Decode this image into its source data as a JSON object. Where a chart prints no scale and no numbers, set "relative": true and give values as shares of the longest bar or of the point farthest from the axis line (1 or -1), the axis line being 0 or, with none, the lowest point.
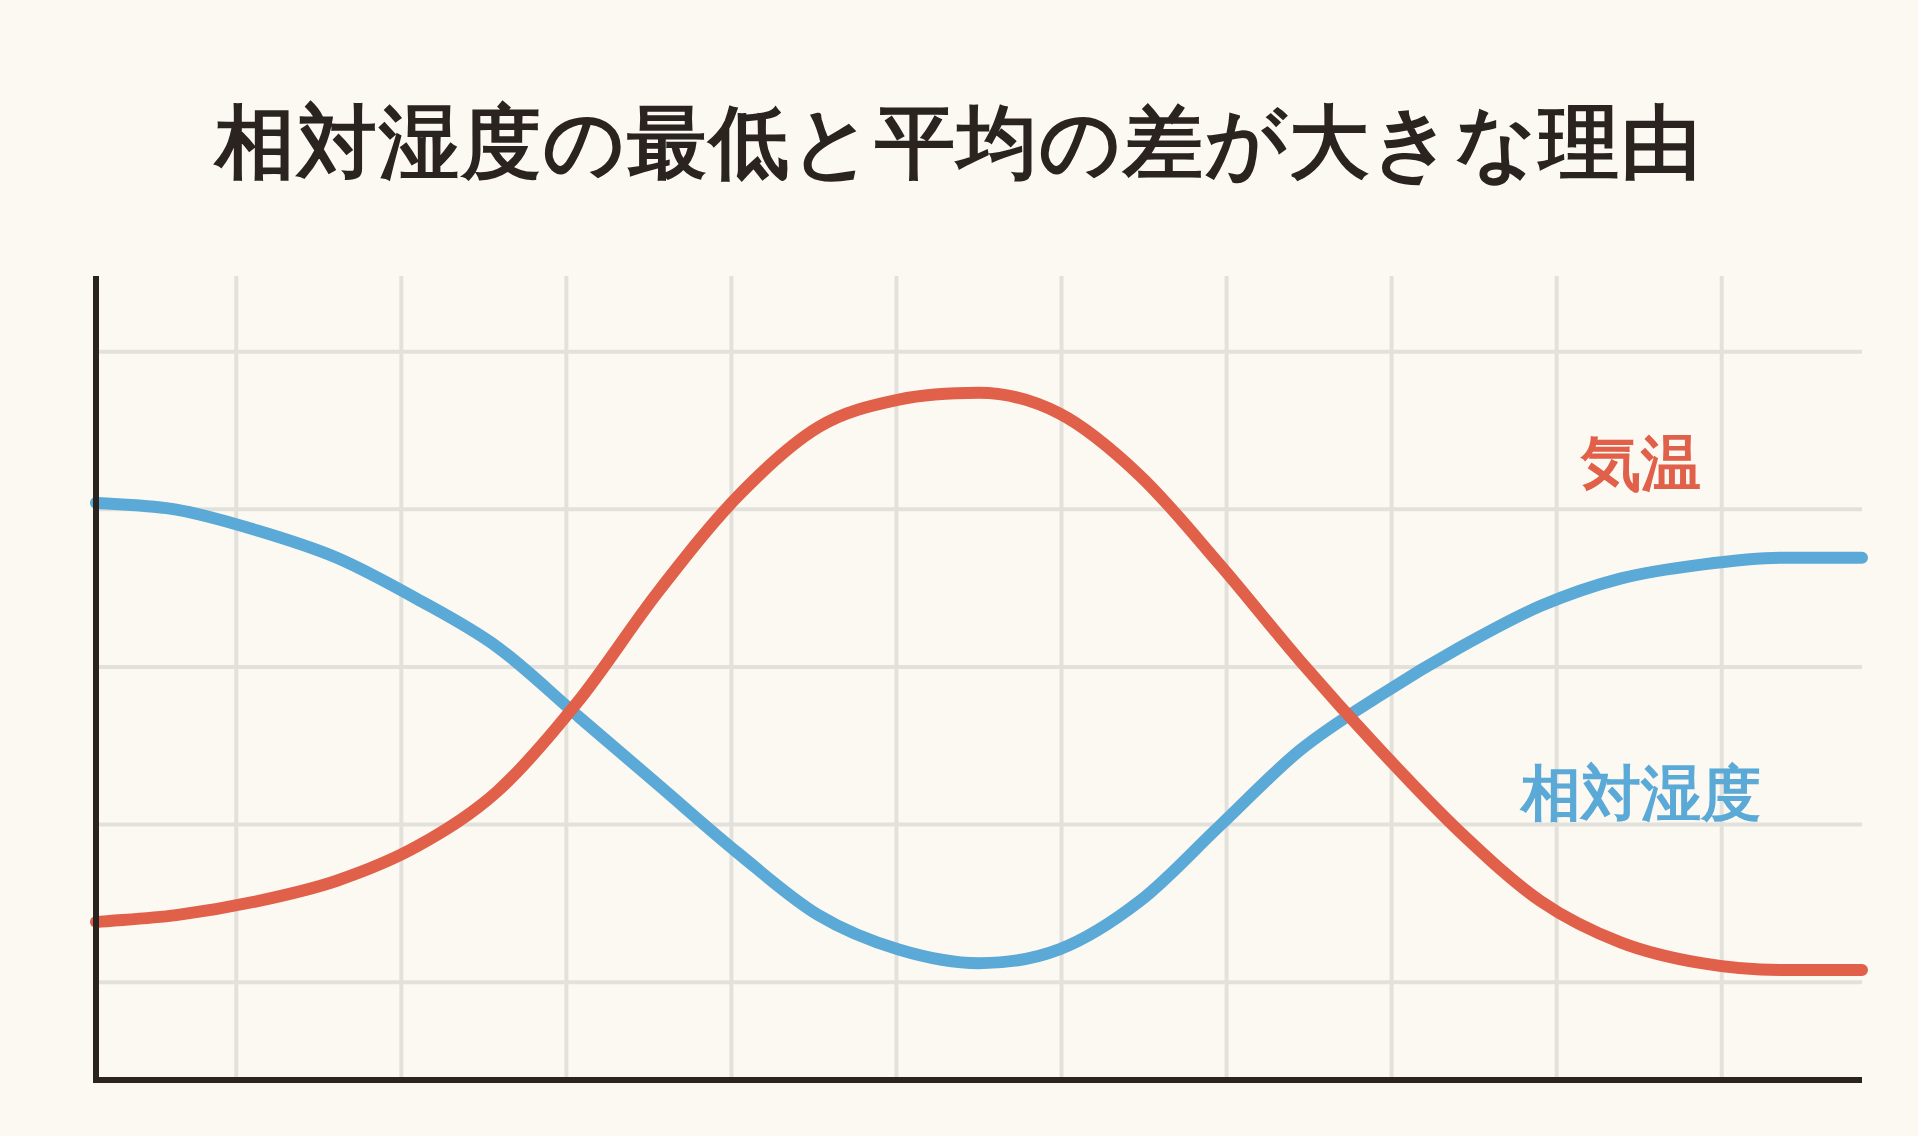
{
  "chart_data": {
    "type": "line",
    "title": "相対湿度の最低と平均の差が大きな理由",
    "relative": true,
    "grid": true,
    "legend": false,
    "marker": "none",
    "categories": [
      null,
      null,
      null,
      null,
      null,
      null,
      null,
      null,
      null,
      null,
      null,
      null,
      null,
      null,
      null,
      null,
      null,
      null,
      null,
      null,
      null,
      null,
      null
    ],
    "series": [
      {
        "name": "気温",
        "color": "#e0604a",
        "values": [
          0.23,
          0.24,
          0.26,
          0.29,
          0.34,
          0.42,
          0.55,
          0.71,
          0.85,
          0.95,
          0.99,
          1,
          0.97,
          0.88,
          0.75,
          0.61,
          0.48,
          0.36,
          0.26,
          0.2,
          0.17,
          0.16,
          0.16
        ]
      },
      {
        "name": "相対湿度",
        "color": "#5aa9d6",
        "values": [
          0.84,
          0.83,
          0.8,
          0.76,
          0.7,
          0.63,
          0.53,
          0.43,
          0.33,
          0.24,
          0.19,
          0.17,
          0.19,
          0.26,
          0.37,
          0.48,
          0.56,
          0.63,
          0.69,
          0.73,
          0.75,
          0.76,
          0.76
        ]
      }
    ]
  }
}
